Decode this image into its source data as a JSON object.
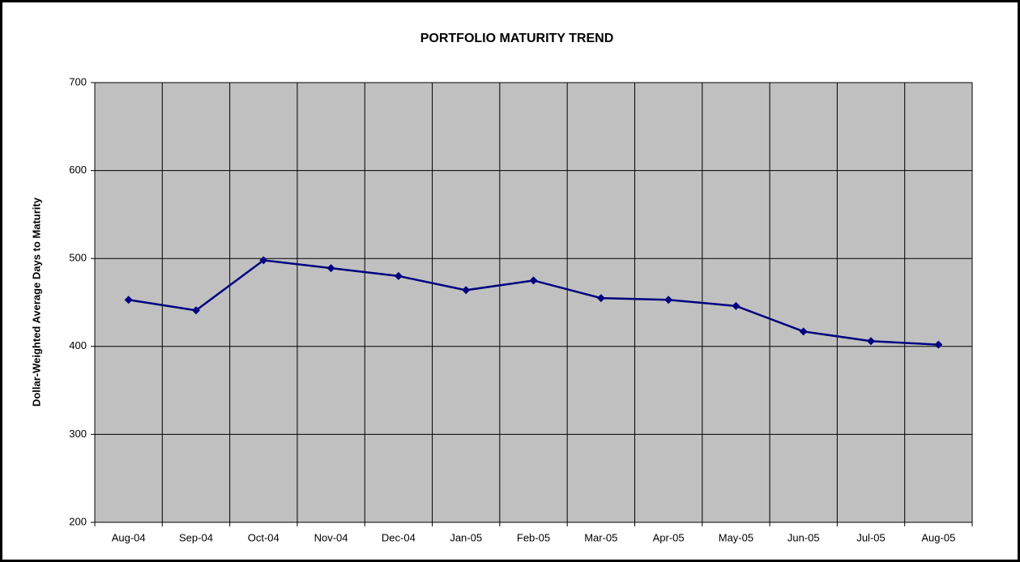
{
  "chart_data": {
    "type": "line",
    "title": "PORTFOLIO MATURITY TREND",
    "y_label": "Dollar-Weighted Average Days to Maturity",
    "categories": [
      "Aug-04",
      "Sep-04",
      "Oct-04",
      "Nov-04",
      "Dec-04",
      "Jan-05",
      "Feb-05",
      "Mar-05",
      "Apr-05",
      "May-05",
      "Jun-05",
      "Jul-05",
      "Aug-05"
    ],
    "series": [
      {
        "color": "#000080",
        "values": [
          453,
          441,
          498,
          489,
          480,
          464,
          475,
          455,
          453,
          446,
          417,
          406,
          402
        ]
      }
    ],
    "ylim": [
      200,
      700
    ],
    "yticks": [
      200,
      300,
      400,
      500,
      600,
      700
    ],
    "grid": true,
    "plot_background": "#c0c0c0"
  }
}
